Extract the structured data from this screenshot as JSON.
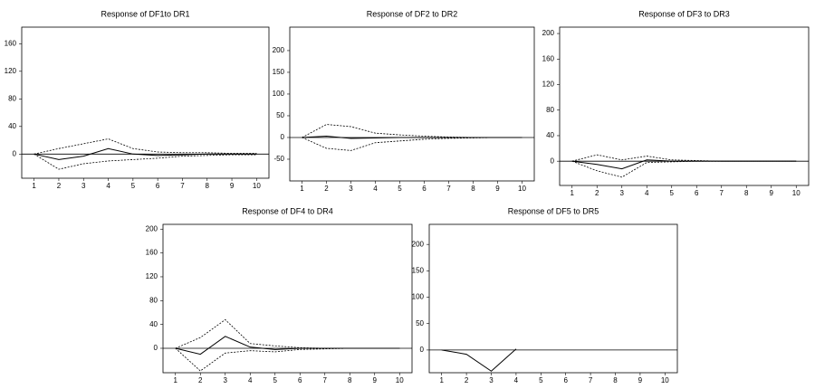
{
  "chart_data": [
    {
      "type": "line",
      "title": "Response of DF1to DR1",
      "x": [
        1,
        2,
        3,
        4,
        5,
        6,
        7,
        8,
        9,
        10
      ],
      "xlim": [
        0.5,
        10.5
      ],
      "xticks": [
        1,
        2,
        3,
        4,
        5,
        6,
        7,
        8,
        9,
        10
      ],
      "ylim": [
        -35,
        184
      ],
      "yticks": [
        0,
        40,
        80,
        120,
        160
      ],
      "series": [
        {
          "color": "#000000",
          "dash": "solid",
          "values": [
            0,
            -8,
            -3,
            8,
            0,
            -2,
            -1,
            0,
            0,
            0
          ]
        },
        {
          "color": "#000000",
          "dash": "dashed",
          "values": [
            0,
            8,
            15,
            22,
            8,
            3,
            2,
            2,
            1,
            1
          ]
        },
        {
          "color": "#000000",
          "dash": "dashed",
          "values": [
            0,
            -22,
            -14,
            -10,
            -8,
            -6,
            -3,
            -2,
            -1,
            -1
          ]
        }
      ]
    },
    {
      "type": "line",
      "title": "Response of DF2 to DR2",
      "x": [
        1,
        2,
        3,
        4,
        5,
        6,
        7,
        8,
        9,
        10
      ],
      "xlim": [
        0.5,
        10.5
      ],
      "xticks": [
        1,
        2,
        3,
        4,
        5,
        6,
        7,
        8,
        9,
        10
      ],
      "ylim": [
        -100,
        254
      ],
      "yticks": [
        -50,
        0,
        50,
        100,
        150,
        200
      ],
      "series": [
        {
          "color": "#000000",
          "dash": "solid",
          "values": [
            0,
            3,
            -2,
            -1,
            0,
            0,
            0,
            0,
            0,
            0
          ]
        },
        {
          "color": "#000000",
          "dash": "dashed",
          "values": [
            0,
            30,
            25,
            10,
            6,
            3,
            1,
            0,
            0,
            0
          ]
        },
        {
          "color": "#000000",
          "dash": "dashed",
          "values": [
            0,
            -25,
            -30,
            -12,
            -8,
            -4,
            -2,
            -1,
            0,
            0
          ]
        }
      ]
    },
    {
      "type": "line",
      "title": "Response of DF3 to DR3",
      "x": [
        1,
        2,
        3,
        4,
        5,
        6,
        7,
        8,
        9,
        10
      ],
      "xlim": [
        0.5,
        10.5
      ],
      "xticks": [
        1,
        2,
        3,
        4,
        5,
        6,
        7,
        8,
        9,
        10
      ],
      "ylim": [
        -38,
        210
      ],
      "yticks": [
        0,
        40,
        80,
        120,
        160,
        200
      ],
      "series": [
        {
          "color": "#000000",
          "dash": "solid",
          "values": [
            0,
            -5,
            -12,
            2,
            0,
            0,
            0,
            0,
            0,
            0
          ]
        },
        {
          "color": "#000000",
          "dash": "dashed",
          "values": [
            0,
            10,
            2,
            8,
            2,
            1,
            0,
            0,
            0,
            0
          ]
        },
        {
          "color": "#000000",
          "dash": "dashed",
          "values": [
            0,
            -15,
            -25,
            -2,
            -1,
            0,
            0,
            0,
            0,
            0
          ]
        }
      ]
    },
    {
      "type": "line",
      "title": "Response of DF4 to DR4",
      "x": [
        1,
        2,
        3,
        4,
        5,
        6,
        7,
        8,
        9,
        10
      ],
      "xlim": [
        0.5,
        10.5
      ],
      "xticks": [
        1,
        2,
        3,
        4,
        5,
        6,
        7,
        8,
        9,
        10
      ],
      "ylim": [
        -41,
        208
      ],
      "yticks": [
        0,
        40,
        80,
        120,
        160,
        200
      ],
      "series": [
        {
          "color": "#000000",
          "dash": "solid",
          "values": [
            0,
            -10,
            20,
            2,
            -2,
            0,
            0,
            0,
            0,
            0
          ]
        },
        {
          "color": "#000000",
          "dash": "dashed",
          "values": [
            0,
            18,
            48,
            8,
            4,
            1,
            0,
            0,
            0,
            0
          ]
        },
        {
          "color": "#000000",
          "dash": "dashed",
          "values": [
            0,
            -38,
            -8,
            -4,
            -6,
            -2,
            -1,
            0,
            0,
            0
          ]
        }
      ]
    },
    {
      "type": "line",
      "title": "Response of DF5 to DR5",
      "x": [
        1,
        2,
        3,
        4,
        5,
        6,
        7,
        8,
        9,
        10
      ],
      "xlim": [
        0.5,
        10.5
      ],
      "xticks": [
        1,
        2,
        3,
        4,
        5,
        6,
        7,
        8,
        9,
        10
      ],
      "ylim": [
        -43,
        238
      ],
      "yticks": [
        0,
        50,
        100,
        150,
        200
      ],
      "series": [
        {
          "color": "#000000",
          "dash": "solid",
          "values": [
            0,
            -8,
            -40,
            2,
            null,
            null,
            null,
            null,
            null,
            null
          ]
        }
      ]
    }
  ]
}
